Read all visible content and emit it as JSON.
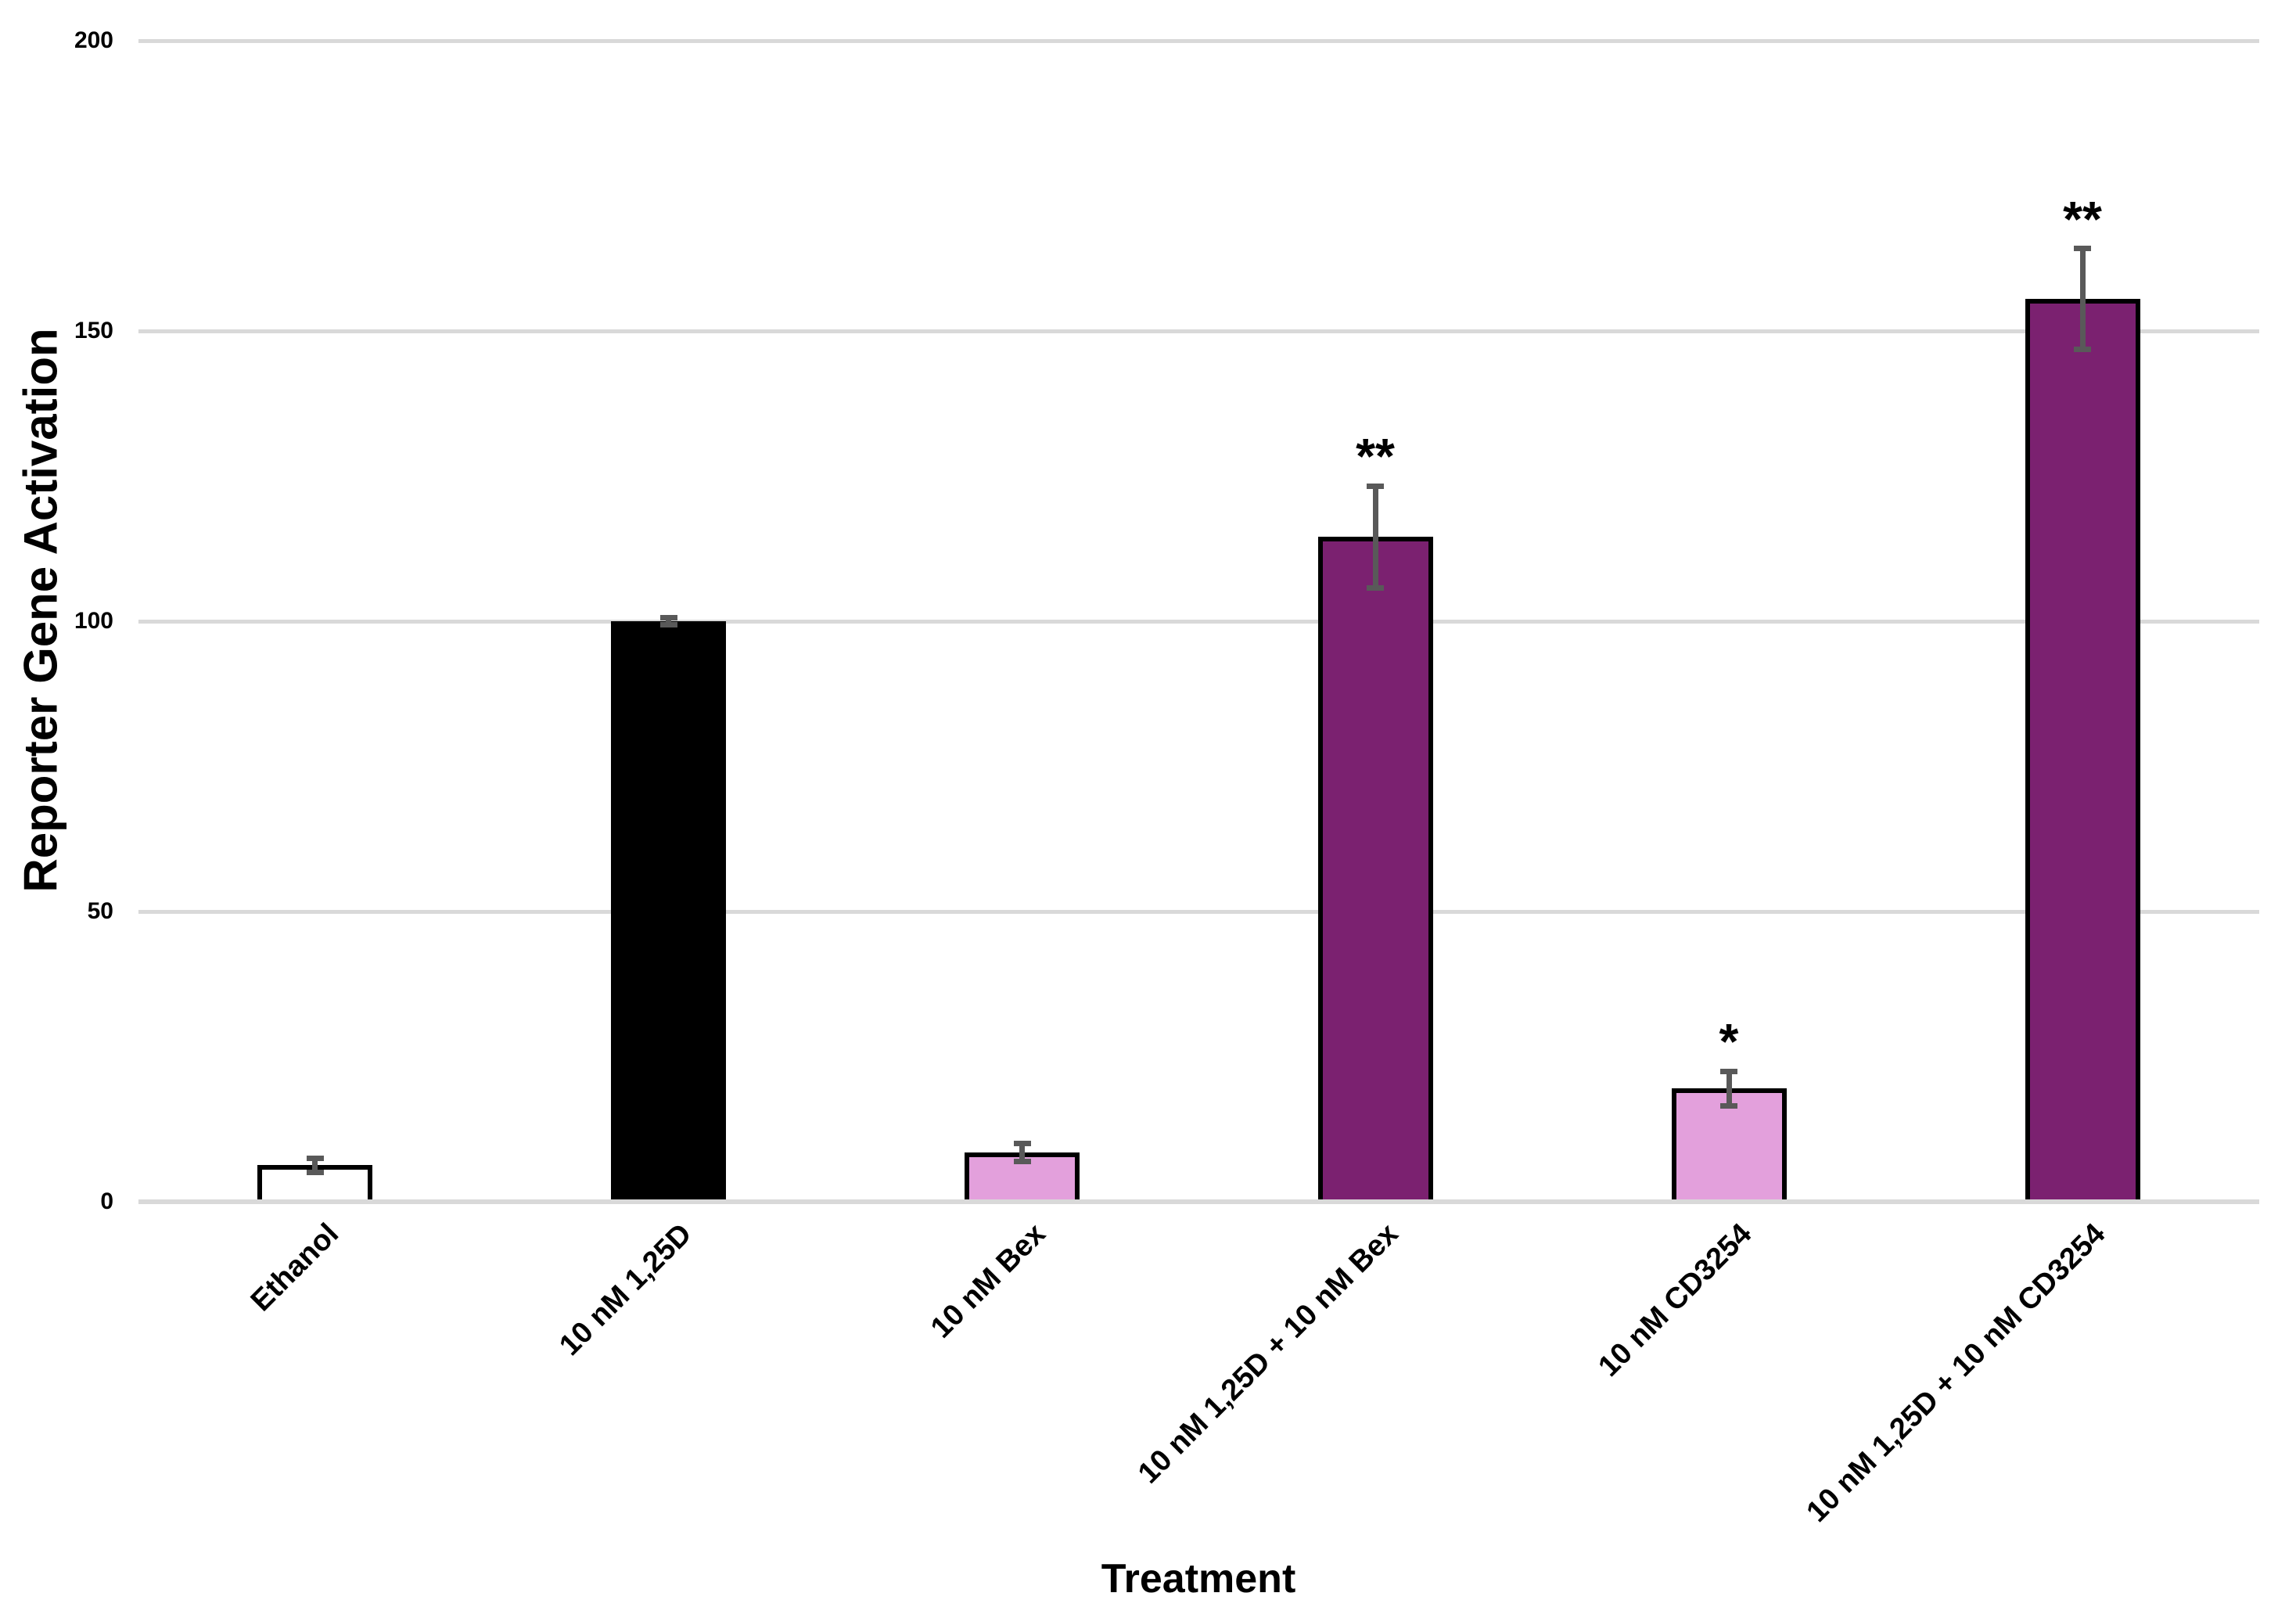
{
  "chart_data": {
    "type": "bar",
    "title": "",
    "xlabel": "Treatment",
    "ylabel": "Reporter Gene Activation",
    "ylim": [
      0,
      200
    ],
    "yticks": [
      0,
      50,
      100,
      150,
      200
    ],
    "grid": true,
    "legend_position": "none",
    "categories": [
      "Ethanol",
      "10 nM 1,25D",
      "10 nM Bex",
      "10 nM 1,25D + 10 nM Bex",
      "10 nM CD3254",
      "10 nM 1,25D + 10 nM CD3254"
    ],
    "values": [
      6.3,
      100,
      8.5,
      114.5,
      19.5,
      155.5
    ],
    "errors": [
      1.2,
      0.6,
      1.5,
      8.8,
      3.0,
      8.7
    ],
    "annotations": [
      "",
      "",
      "",
      "**",
      "*",
      "**"
    ],
    "bar_colors": [
      "#ffffff",
      "#000000",
      "#e3a0dc",
      "#7b2170",
      "#e3a0dc",
      "#7b2170"
    ],
    "bar_border_color": "#000000",
    "error_bar_color": "#595959",
    "gridline_color": "#d9d9d9",
    "axis_label_color": "#000000"
  }
}
